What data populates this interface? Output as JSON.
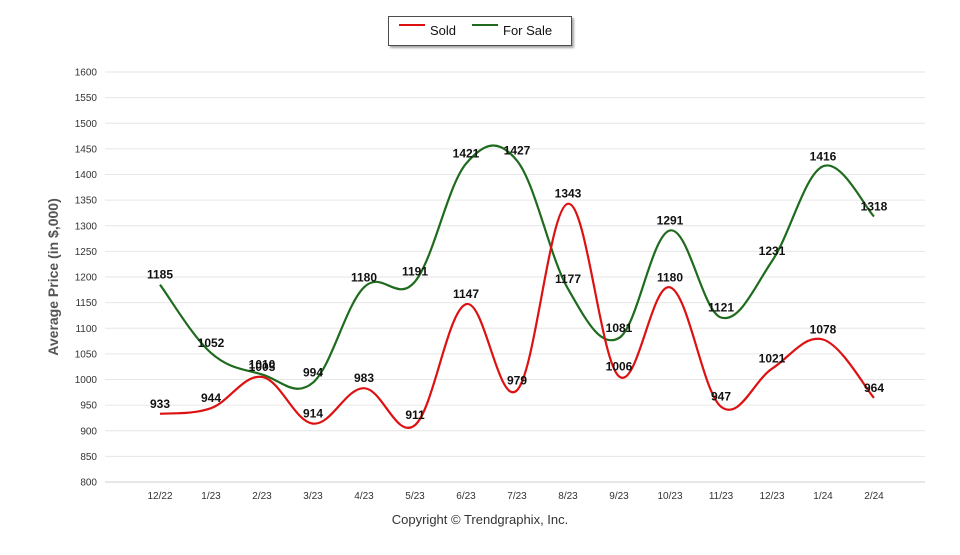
{
  "chart_data": {
    "type": "line",
    "title": "",
    "xlabel": "",
    "ylabel": "Average Price (in $,000)",
    "ylim": [
      800,
      1600
    ],
    "yticks": [
      800,
      850,
      900,
      950,
      1000,
      1050,
      1100,
      1150,
      1200,
      1250,
      1300,
      1350,
      1400,
      1450,
      1500,
      1550,
      1600
    ],
    "grid": true,
    "legend_position": "top-center",
    "categories": [
      "12/22",
      "1/23",
      "2/23",
      "3/23",
      "4/23",
      "5/23",
      "6/23",
      "7/23",
      "8/23",
      "9/23",
      "10/23",
      "11/23",
      "12/23",
      "1/24",
      "2/24"
    ],
    "series": [
      {
        "name": "Sold",
        "color": "#dd1111",
        "values": [
          933,
          944,
          1005,
          914,
          983,
          911,
          1147,
          979,
          1343,
          1006,
          1180,
          947,
          1021,
          1078,
          964
        ]
      },
      {
        "name": "For Sale",
        "color": "#1e6b1e",
        "values": [
          1185,
          1052,
          1010,
          994,
          1180,
          1191,
          1421,
          1427,
          1177,
          1081,
          1291,
          1121,
          1231,
          1416,
          1318
        ]
      }
    ]
  },
  "footer": {
    "copyright": "Copyright © Trendgraphix, Inc."
  }
}
